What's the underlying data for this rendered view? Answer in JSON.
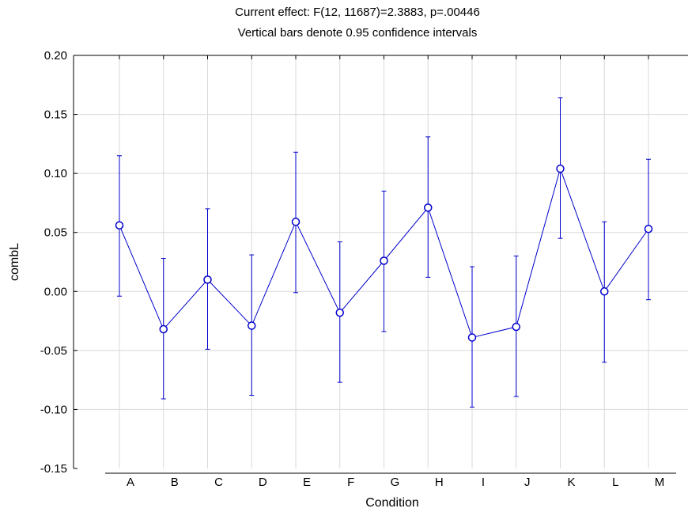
{
  "chart_data": {
    "type": "line",
    "title": "Current effect: F(12, 11687)=2.3883, p=.00446",
    "subtitle": "Vertical bars denote 0.95 confidence intervals",
    "xlabel": "Condition",
    "ylabel": "combL",
    "ylim": [
      -0.15,
      0.2
    ],
    "yticks": [
      "0.20",
      "0.15",
      "0.10",
      "0.05",
      "0.00",
      "-0.05",
      "-0.10",
      "-0.15"
    ],
    "ytick_values": [
      0.2,
      0.15,
      0.1,
      0.05,
      0.0,
      -0.05,
      -0.1,
      -0.15
    ],
    "grid": true,
    "categories": [
      "A",
      "B",
      "C",
      "D",
      "E",
      "F",
      "G",
      "H",
      "I",
      "J",
      "K",
      "L",
      "M"
    ],
    "series": [
      {
        "values": [
          0.056,
          -0.032,
          0.01,
          -0.029,
          0.059,
          -0.018,
          0.026,
          0.071,
          -0.039,
          -0.03,
          0.104,
          0.0,
          0.053
        ],
        "ci_lower": [
          -0.004,
          -0.091,
          -0.049,
          -0.088,
          -0.001,
          -0.077,
          -0.034,
          0.012,
          -0.098,
          -0.089,
          0.045,
          -0.06,
          -0.007
        ],
        "ci_upper": [
          0.115,
          0.028,
          0.07,
          0.031,
          0.118,
          0.042,
          0.085,
          0.131,
          0.021,
          0.03,
          0.164,
          0.059,
          0.112
        ]
      }
    ],
    "colors": {
      "series": "#0000cc",
      "grid": "#d9d9d9",
      "axis": "#000000"
    }
  }
}
